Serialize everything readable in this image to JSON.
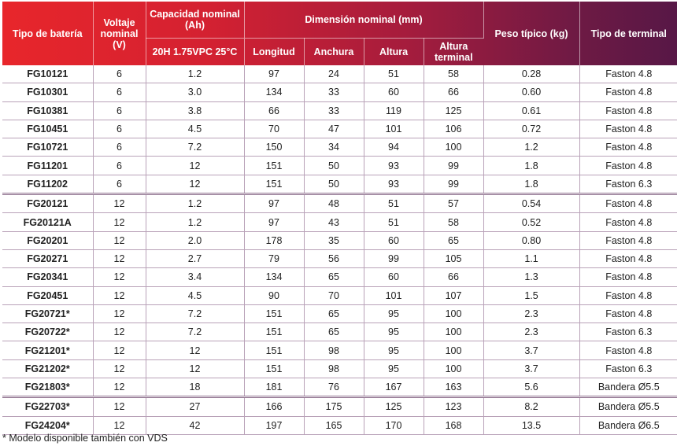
{
  "header": {
    "tipo_bateria": "Tipo de batería",
    "voltaje": "Voltaje nominal (V)",
    "capacidad": "Capacidad nominal (Ah)",
    "capacidad_sub": "20H 1.75VPC 25°C",
    "dimension": "Dimensión nominal (mm)",
    "longitud": "Longitud",
    "anchura": "Anchura",
    "altura": "Altura",
    "altura_terminal": "Altura terminal",
    "peso": "Peso típico (kg)",
    "terminal": "Tipo de terminal"
  },
  "rows": [
    {
      "model": "FG10121",
      "v": "6",
      "ah": "1.2",
      "l": "97",
      "w": "24",
      "h": "51",
      "ht": "58",
      "kg": "0.28",
      "t": "Faston 4.8"
    },
    {
      "model": "FG10301",
      "v": "6",
      "ah": "3.0",
      "l": "134",
      "w": "33",
      "h": "60",
      "ht": "66",
      "kg": "0.60",
      "t": "Faston 4.8"
    },
    {
      "model": "FG10381",
      "v": "6",
      "ah": "3.8",
      "l": "66",
      "w": "33",
      "h": "119",
      "ht": "125",
      "kg": "0.61",
      "t": "Faston 4.8"
    },
    {
      "model": "FG10451",
      "v": "6",
      "ah": "4.5",
      "l": "70",
      "w": "47",
      "h": "101",
      "ht": "106",
      "kg": "0.72",
      "t": "Faston 4.8"
    },
    {
      "model": "FG10721",
      "v": "6",
      "ah": "7.2",
      "l": "150",
      "w": "34",
      "h": "94",
      "ht": "100",
      "kg": "1.2",
      "t": "Faston 4.8"
    },
    {
      "model": "FG11201",
      "v": "6",
      "ah": "12",
      "l": "151",
      "w": "50",
      "h": "93",
      "ht": "99",
      "kg": "1.8",
      "t": "Faston 4.8"
    },
    {
      "model": "FG11202",
      "v": "6",
      "ah": "12",
      "l": "151",
      "w": "50",
      "h": "93",
      "ht": "99",
      "kg": "1.8",
      "t": "Faston 6.3"
    },
    {
      "model": "FG20121",
      "v": "12",
      "ah": "1.2",
      "l": "97",
      "w": "48",
      "h": "51",
      "ht": "57",
      "kg": "0.54",
      "t": "Faston 4.8",
      "group_start": true
    },
    {
      "model": "FG20121A",
      "v": "12",
      "ah": "1.2",
      "l": "97",
      "w": "43",
      "h": "51",
      "ht": "58",
      "kg": "0.52",
      "t": "Faston 4.8"
    },
    {
      "model": "FG20201",
      "v": "12",
      "ah": "2.0",
      "l": "178",
      "w": "35",
      "h": "60",
      "ht": "65",
      "kg": "0.80",
      "t": "Faston 4.8"
    },
    {
      "model": "FG20271",
      "v": "12",
      "ah": "2.7",
      "l": "79",
      "w": "56",
      "h": "99",
      "ht": "105",
      "kg": "1.1",
      "t": "Faston 4.8"
    },
    {
      "model": "FG20341",
      "v": "12",
      "ah": "3.4",
      "l": "134",
      "w": "65",
      "h": "60",
      "ht": "66",
      "kg": "1.3",
      "t": "Faston 4.8"
    },
    {
      "model": "FG20451",
      "v": "12",
      "ah": "4.5",
      "l": "90",
      "w": "70",
      "h": "101",
      "ht": "107",
      "kg": "1.5",
      "t": "Faston 4.8"
    },
    {
      "model": "FG20721*",
      "v": "12",
      "ah": "7.2",
      "l": "151",
      "w": "65",
      "h": "95",
      "ht": "100",
      "kg": "2.3",
      "t": "Faston 4.8"
    },
    {
      "model": "FG20722*",
      "v": "12",
      "ah": "7.2",
      "l": "151",
      "w": "65",
      "h": "95",
      "ht": "100",
      "kg": "2.3",
      "t": "Faston 6.3"
    },
    {
      "model": "FG21201*",
      "v": "12",
      "ah": "12",
      "l": "151",
      "w": "98",
      "h": "95",
      "ht": "100",
      "kg": "3.7",
      "t": "Faston 4.8"
    },
    {
      "model": "FG21202*",
      "v": "12",
      "ah": "12",
      "l": "151",
      "w": "98",
      "h": "95",
      "ht": "100",
      "kg": "3.7",
      "t": "Faston 6.3"
    },
    {
      "model": "FG21803*",
      "v": "12",
      "ah": "18",
      "l": "181",
      "w": "76",
      "h": "167",
      "ht": "163",
      "kg": "5.6",
      "t": "Bandera Ø5.5"
    },
    {
      "model": "FG22703*",
      "v": "12",
      "ah": "27",
      "l": "166",
      "w": "175",
      "h": "125",
      "ht": "123",
      "kg": "8.2",
      "t": "Bandera Ø5.5",
      "group_start": true
    },
    {
      "model": "FG24204*",
      "v": "12",
      "ah": "42",
      "l": "197",
      "w": "165",
      "h": "170",
      "ht": "168",
      "kg": "13.5",
      "t": "Bandera Ø6.5"
    }
  ],
  "note": "* Modelo disponible también con VDS"
}
